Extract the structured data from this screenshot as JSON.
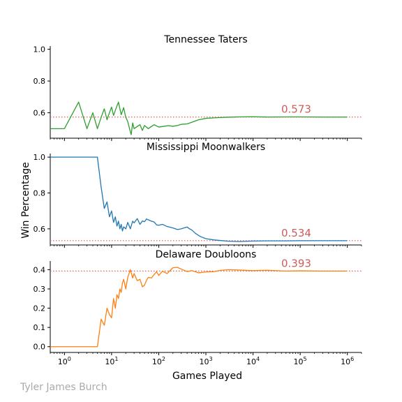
{
  "credit": "Tyler James Burch",
  "colors": {
    "tennessee": "#2ca02c",
    "mississippi": "#1f77b4",
    "delaware": "#ff7f0e",
    "reference_line": "#e05a4f",
    "annotation": "#cd5c5c"
  },
  "chart_data": {
    "type": "line",
    "xscale": "log",
    "xlim": [
      0.5,
      2000000
    ],
    "xlabel": "Games Played",
    "ylabel": "Win Percentage",
    "x_ticks": [
      1,
      10,
      100,
      1000,
      10000,
      100000,
      1000000
    ],
    "x_tick_labels": [
      {
        "base": "10",
        "exp": "0"
      },
      {
        "base": "10",
        "exp": "1"
      },
      {
        "base": "10",
        "exp": "2"
      },
      {
        "base": "10",
        "exp": "3"
      },
      {
        "base": "10",
        "exp": "4"
      },
      {
        "base": "10",
        "exp": "5"
      },
      {
        "base": "10",
        "exp": "6"
      }
    ],
    "panels": [
      {
        "title": "Tennessee Taters",
        "ylim": [
          0.44,
          1.02
        ],
        "yticks": [
          0.6,
          0.8,
          1.0
        ],
        "ytick_labels": [
          "0.6",
          "0.8",
          "1.0"
        ],
        "reference_value": 0.573,
        "annotation": "0.573",
        "series": {
          "color_key": "tennessee",
          "x": [
            0.5,
            1,
            2,
            3,
            4,
            5,
            6,
            7,
            8,
            9,
            10,
            11,
            12,
            13,
            14,
            15,
            16,
            17,
            18,
            19,
            20,
            22,
            24,
            26,
            28,
            30,
            35,
            40,
            45,
            50,
            60,
            70,
            80,
            100,
            130,
            160,
            200,
            250,
            300,
            400,
            500,
            700,
            1000,
            1500,
            2000,
            3000,
            5000,
            10000,
            20000,
            50000,
            100000,
            300000,
            1000000
          ],
          "y": [
            0.5,
            0.5,
            0.667,
            0.5,
            0.6,
            0.5,
            0.571,
            0.625,
            0.556,
            0.6,
            0.636,
            0.583,
            0.615,
            0.643,
            0.667,
            0.625,
            0.588,
            0.611,
            0.632,
            0.6,
            0.571,
            0.545,
            0.5,
            0.462,
            0.536,
            0.5,
            0.514,
            0.525,
            0.489,
            0.52,
            0.5,
            0.514,
            0.525,
            0.51,
            0.515,
            0.519,
            0.515,
            0.52,
            0.527,
            0.53,
            0.54,
            0.556,
            0.565,
            0.568,
            0.57,
            0.572,
            0.574,
            0.575,
            0.573,
            0.574,
            0.574,
            0.573,
            0.573
          ]
        }
      },
      {
        "title": "Mississippi Moonwalkers",
        "ylim": [
          0.51,
          1.02
        ],
        "yticks": [
          0.6,
          0.8,
          1.0
        ],
        "ytick_labels": [
          "0.6",
          "0.8",
          "1.0"
        ],
        "reference_value": 0.534,
        "annotation": "0.534",
        "series": {
          "color_key": "mississippi",
          "x": [
            0.5,
            1,
            2,
            3,
            4,
            5,
            6,
            7,
            8,
            9,
            10,
            11,
            12,
            13,
            14,
            15,
            16,
            17,
            18,
            20,
            22,
            25,
            28,
            30,
            35,
            40,
            45,
            50,
            55,
            60,
            70,
            80,
            90,
            100,
            120,
            150,
            200,
            250,
            300,
            350,
            400,
            450,
            500,
            600,
            700,
            800,
            1000,
            1500,
            2000,
            3000,
            5000,
            10000,
            20000,
            50000,
            100000,
            300000,
            1000000
          ],
          "y": [
            1.0,
            1.0,
            1.0,
            1.0,
            1.0,
            1.0,
            0.833,
            0.714,
            0.75,
            0.667,
            0.7,
            0.636,
            0.667,
            0.615,
            0.643,
            0.6,
            0.625,
            0.588,
            0.611,
            0.6,
            0.636,
            0.6,
            0.643,
            0.633,
            0.657,
            0.625,
            0.644,
            0.64,
            0.655,
            0.65,
            0.643,
            0.638,
            0.622,
            0.62,
            0.625,
            0.613,
            0.605,
            0.596,
            0.6,
            0.606,
            0.61,
            0.6,
            0.594,
            0.575,
            0.563,
            0.555,
            0.545,
            0.538,
            0.535,
            0.531,
            0.529,
            0.532,
            0.533,
            0.533,
            0.534,
            0.534,
            0.534
          ]
        }
      },
      {
        "title": "Delaware Doubloons",
        "ylim": [
          -0.03,
          0.445
        ],
        "yticks": [
          0.0,
          0.1,
          0.2,
          0.3,
          0.4
        ],
        "ytick_labels": [
          "0.0",
          "0.1",
          "0.2",
          "0.3",
          "0.4"
        ],
        "reference_value": 0.393,
        "annotation": "0.393",
        "series": {
          "color_key": "delaware",
          "x": [
            0.5,
            1,
            2,
            3,
            4,
            5,
            6,
            7,
            8,
            9,
            10,
            11,
            12,
            13,
            14,
            15,
            16,
            17,
            18,
            20,
            22,
            25,
            28,
            30,
            35,
            40,
            45,
            50,
            55,
            60,
            70,
            80,
            90,
            100,
            120,
            150,
            200,
            250,
            300,
            400,
            500,
            700,
            1000,
            1500,
            2000,
            3000,
            5000,
            10000,
            20000,
            50000,
            100000,
            300000,
            1000000
          ],
          "y": [
            0.0,
            0.0,
            0.0,
            0.0,
            0.0,
            0.0,
            0.143,
            0.111,
            0.2,
            0.167,
            0.15,
            0.25,
            0.2,
            0.27,
            0.25,
            0.3,
            0.282,
            0.33,
            0.35,
            0.3,
            0.36,
            0.4,
            0.357,
            0.38,
            0.343,
            0.35,
            0.311,
            0.32,
            0.345,
            0.36,
            0.357,
            0.375,
            0.389,
            0.37,
            0.392,
            0.38,
            0.41,
            0.412,
            0.403,
            0.39,
            0.395,
            0.384,
            0.388,
            0.39,
            0.396,
            0.4,
            0.398,
            0.395,
            0.397,
            0.393,
            0.394,
            0.393,
            0.393
          ]
        }
      }
    ]
  }
}
